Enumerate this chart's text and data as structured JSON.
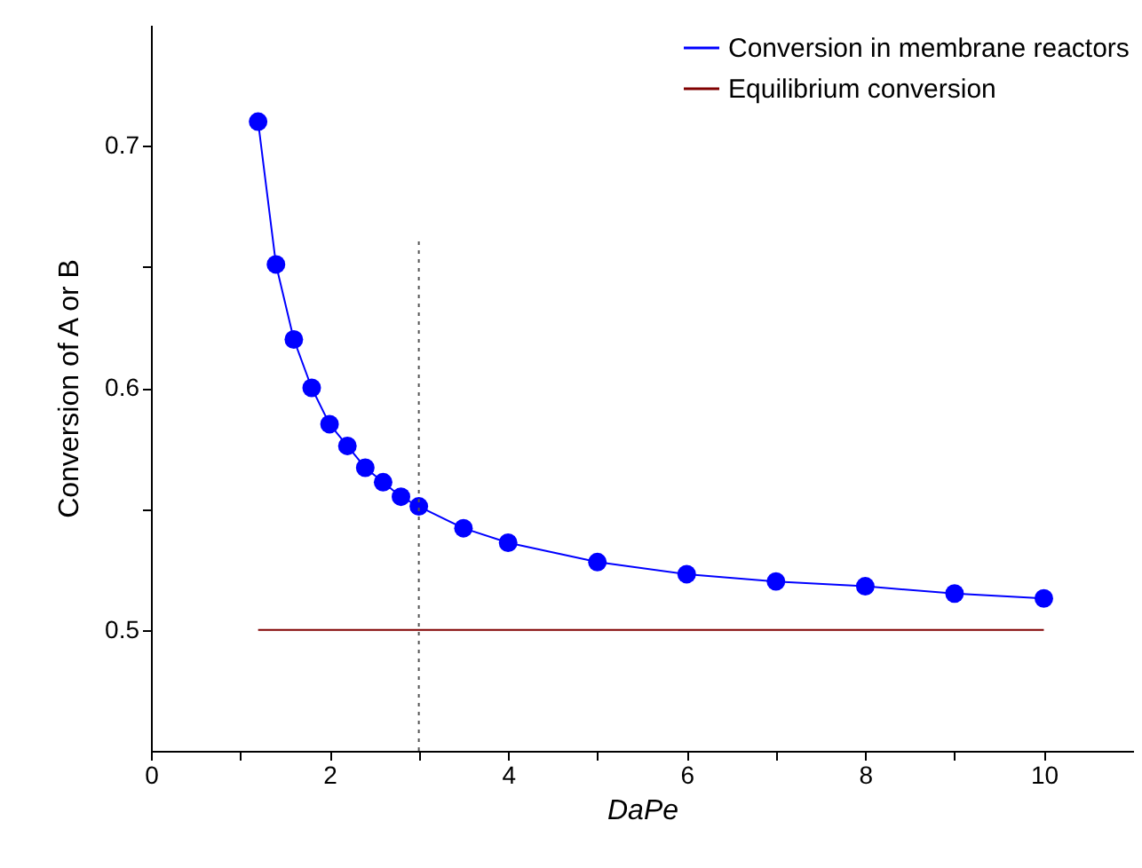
{
  "chart_data": {
    "type": "line",
    "xlabel": "DaPe",
    "ylabel": "Conversion of A or B",
    "xlim": [
      0,
      11
    ],
    "xticks": [
      0,
      {
        "value": 1,
        "label": null
      },
      2,
      {
        "value": 3,
        "label": null
      },
      4,
      {
        "value": 5,
        "label": null
      },
      6,
      {
        "value": 7,
        "label": null
      },
      8,
      {
        "value": 9,
        "label": null
      },
      10
    ],
    "ylim": [
      0.45,
      0.75
    ],
    "yticks": [
      0.5,
      {
        "value": 0.55,
        "label": null
      },
      0.6,
      {
        "value": 0.65,
        "label": null
      },
      0.7
    ],
    "grid": false,
    "legend": "top right",
    "series": [
      {
        "name": "Conversion in membrane reactors",
        "marker": "circle",
        "line_style": "solid",
        "color": "#0000ff",
        "x": [
          1.2,
          1.4,
          1.6,
          1.8,
          2.0,
          2.2,
          2.4,
          2.6,
          2.8,
          3.0,
          3.5,
          4,
          5,
          6,
          7,
          8,
          9,
          10
        ],
        "values": [
          0.71,
          0.651,
          0.62,
          0.6,
          0.585,
          0.576,
          0.567,
          0.561,
          0.555,
          0.551,
          0.542,
          0.536,
          0.528,
          0.523,
          0.52,
          0.518,
          0.515,
          0.513
        ]
      },
      {
        "name": "Equilibrium conversion",
        "marker": "none",
        "line_style": "solid",
        "color": "#800000",
        "x": [
          1.2,
          10
        ],
        "values": [
          0.5,
          0.5
        ]
      },
      {
        "marker": "none",
        "line_style": "dotted",
        "color": "#555555",
        "x": [
          3,
          3
        ],
        "values": [
          0.45,
          0.662
        ]
      }
    ]
  }
}
